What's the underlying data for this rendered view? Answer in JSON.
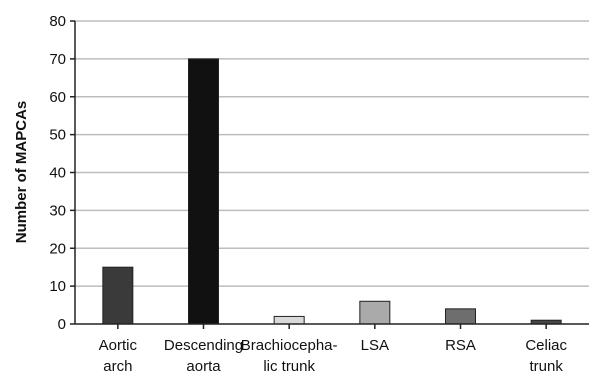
{
  "chart_data": {
    "type": "bar",
    "title": "",
    "xlabel": "",
    "ylabel": "Number of MAPCAs",
    "ylim": [
      0,
      80
    ],
    "yticks": [
      0,
      10,
      20,
      30,
      40,
      50,
      60,
      70,
      80
    ],
    "grid": true,
    "legend": "none",
    "categories": [
      [
        "Aortic",
        "arch"
      ],
      [
        "Descending",
        "aorta"
      ],
      [
        "Brachiocepha-",
        "lic trunk"
      ],
      [
        "LSA"
      ],
      [
        "RSA"
      ],
      [
        "Celiac",
        "trunk"
      ]
    ],
    "values": [
      15,
      70,
      2,
      6,
      4,
      1
    ],
    "colors": [
      "#3a3a3a",
      "#111111",
      "#d9d9d9",
      "#aaaaaa",
      "#6e6e6e",
      "#474747"
    ]
  }
}
